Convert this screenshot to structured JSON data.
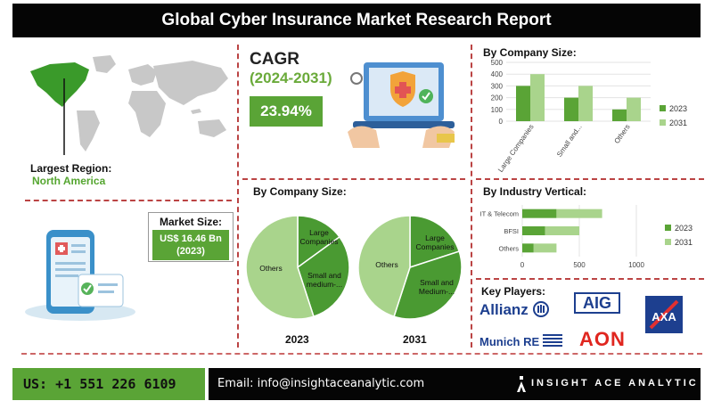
{
  "header": {
    "title": "Global Cyber Insurance Market Research Report"
  },
  "largest_region": {
    "label": "Largest Region:",
    "value": "North America"
  },
  "market_size": {
    "label": "Market Size:",
    "value_line1": "US$ 16.46 Bn",
    "value_line2": "(2023)"
  },
  "cagr": {
    "label": "CAGR",
    "period": "(2024-2031)",
    "value": "23.94%"
  },
  "key_players": {
    "label": "Key Players:",
    "logos": [
      "Allianz",
      "AIG",
      "AXA",
      "Munich RE",
      "AON"
    ]
  },
  "footer": {
    "phone": "US: +1 551 226 6109",
    "email": "Email: info@insightaceanalytic.com",
    "brand": "INSIGHT ACE ANALYTIC"
  },
  "colors": {
    "dark_green": "#5aa436",
    "light_green": "#a9d48c",
    "accent_red": "#b44444"
  },
  "chart_data": [
    {
      "type": "bar",
      "title": "By Company Size:",
      "categories": [
        "Large Companies",
        "Small and...",
        "Others"
      ],
      "series": [
        {
          "name": "2023",
          "values": [
            300,
            200,
            100
          ]
        },
        {
          "name": "2031",
          "values": [
            400,
            300,
            200
          ]
        }
      ],
      "yticks": [
        0,
        100,
        200,
        300,
        400,
        500
      ],
      "ylim": [
        0,
        500
      ],
      "legend": "right"
    },
    {
      "type": "bar",
      "orientation": "horizontal",
      "title": "By Industry Vertical:",
      "categories": [
        "IT & Telecom",
        "BFSI",
        "Others"
      ],
      "series": [
        {
          "name": "2023",
          "values": [
            300,
            200,
            100
          ]
        },
        {
          "name": "2031",
          "values": [
            700,
            500,
            300
          ]
        }
      ],
      "xticks": [
        0,
        500,
        1000
      ],
      "xlim": [
        0,
        1000
      ],
      "legend": "right"
    },
    {
      "type": "pie",
      "year_label": "2023",
      "slices": [
        {
          "label": "Large Companies",
          "value": 15
        },
        {
          "label": "Small and medium-...",
          "value": 30
        },
        {
          "label": "Others",
          "value": 55
        }
      ]
    },
    {
      "type": "pie",
      "year_label": "2031",
      "slices": [
        {
          "label": "Large Companies",
          "value": 20
        },
        {
          "label": "Small and Medium-...",
          "value": 35
        },
        {
          "label": "Others",
          "value": 45
        }
      ]
    }
  ],
  "pie_section": {
    "label": "By Company Size:"
  }
}
